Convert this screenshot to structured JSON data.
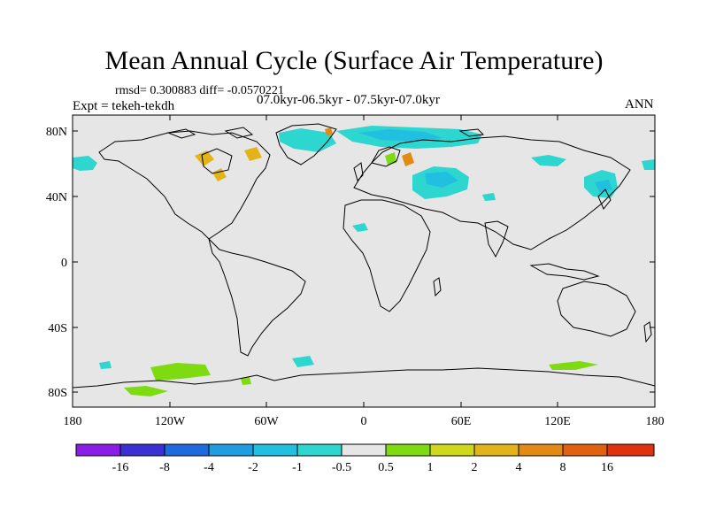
{
  "title": "Mean Annual Cycle (Surface Air Temperature)",
  "stats": "rmsd= 0.300883 diff= -0.0570221",
  "expt": "Expt = tekeh-tekdh",
  "period": "07.0kyr-06.5kyr - 07.5kyr-07.0kyr",
  "season": "ANN",
  "axes": {
    "lat_ticks": [
      "80N",
      "40N",
      "0",
      "40S",
      "80S"
    ],
    "lon_ticks": [
      "180",
      "120W",
      "60W",
      "0",
      "60E",
      "120E",
      "180"
    ]
  },
  "colorbar": {
    "labels": [
      "-16",
      "-8",
      "-4",
      "-2",
      "-1",
      "-0.5",
      "0.5",
      "1",
      "2",
      "4",
      "8",
      "16"
    ],
    "colors": [
      "#8a1de8",
      "#3b2fd6",
      "#1e6be0",
      "#1f9de0",
      "#22c0e0",
      "#2ed6d0",
      "#e6e6e6",
      "#7edb12",
      "#cfd81a",
      "#e3b41a",
      "#e38a14",
      "#e06210",
      "#e0320c"
    ]
  },
  "map_colors": {
    "background": "#e6e6e6",
    "coast": "#000000"
  }
}
